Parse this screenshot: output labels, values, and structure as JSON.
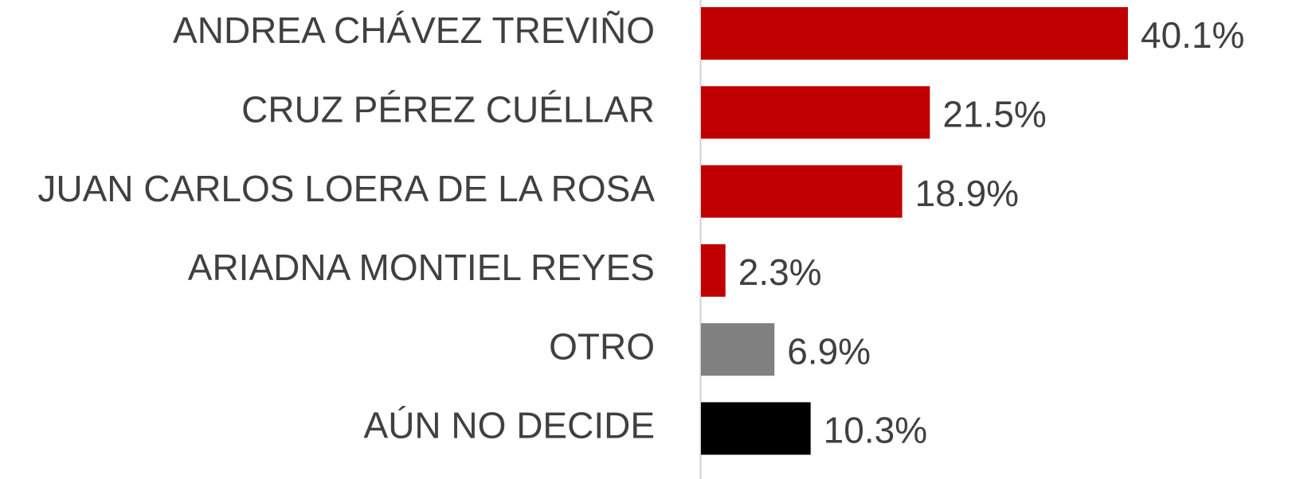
{
  "chart_data": {
    "type": "bar",
    "orientation": "horizontal",
    "categories": [
      "ANDREA CHÁVEZ TREVIÑO",
      "CRUZ PÉREZ CUÉLLAR",
      "JUAN CARLOS LOERA DE LA ROSA",
      "ARIADNA MONTIEL REYES",
      "OTRO",
      "AÚN NO DECIDE"
    ],
    "values": [
      40.1,
      21.5,
      18.9,
      2.3,
      6.9,
      10.3
    ],
    "value_labels": [
      "40.1%",
      "21.5%",
      "18.9%",
      "2.3%",
      "6.9%",
      "10.3%"
    ],
    "colors": [
      "#c00000",
      "#c00000",
      "#c00000",
      "#c00000",
      "#808080",
      "#000000"
    ]
  }
}
